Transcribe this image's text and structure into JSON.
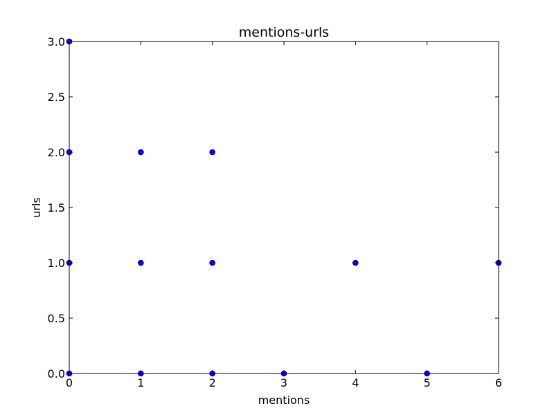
{
  "chart_data": {
    "type": "scatter",
    "title": "mentions-urls",
    "xlabel": "mentions",
    "ylabel": "urls",
    "xlim": [
      0,
      6
    ],
    "ylim": [
      0,
      3
    ],
    "xticks": [
      "0",
      "1",
      "2",
      "3",
      "4",
      "5",
      "6"
    ],
    "yticks": [
      "0.0",
      "0.5",
      "1.0",
      "1.5",
      "2.0",
      "2.5",
      "3.0"
    ],
    "grid": false,
    "marker_color": "#0000ff",
    "points": [
      {
        "x": 0,
        "y": 0
      },
      {
        "x": 0,
        "y": 1
      },
      {
        "x": 0,
        "y": 2
      },
      {
        "x": 0,
        "y": 3
      },
      {
        "x": 1,
        "y": 0
      },
      {
        "x": 1,
        "y": 1
      },
      {
        "x": 1,
        "y": 2
      },
      {
        "x": 2,
        "y": 0
      },
      {
        "x": 2,
        "y": 1
      },
      {
        "x": 2,
        "y": 2
      },
      {
        "x": 3,
        "y": 0
      },
      {
        "x": 4,
        "y": 1
      },
      {
        "x": 5,
        "y": 0
      },
      {
        "x": 6,
        "y": 1
      }
    ]
  }
}
